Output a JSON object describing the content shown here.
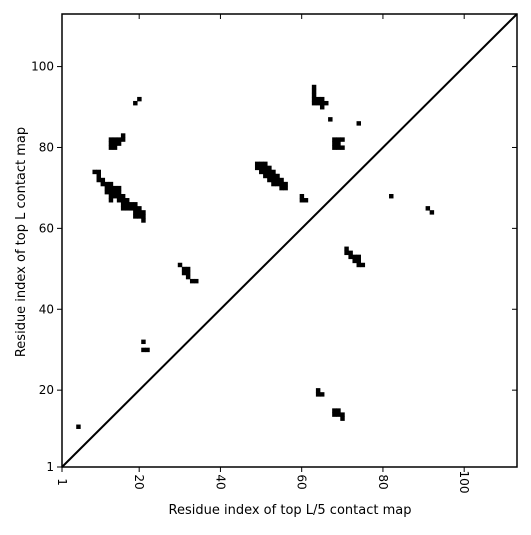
{
  "chart_data": {
    "type": "heatmap",
    "title": "",
    "xlabel": "Residue index of top L/5 contact map",
    "ylabel": "Residue index of top L contact map",
    "xlim": [
      1,
      113
    ],
    "ylim": [
      1,
      113
    ],
    "x_ticks": [
      {
        "value": 1,
        "label": "1"
      },
      {
        "value": 20,
        "label": "20"
      },
      {
        "value": 40,
        "label": "40"
      },
      {
        "value": 60,
        "label": "60"
      },
      {
        "value": 80,
        "label": "80"
      },
      {
        "value": 100,
        "label": "100"
      }
    ],
    "y_ticks": [
      {
        "value": 1,
        "label": "1"
      },
      {
        "value": 20,
        "label": "20"
      },
      {
        "value": 40,
        "label": "40"
      },
      {
        "value": 60,
        "label": "60"
      },
      {
        "value": 80,
        "label": "80"
      },
      {
        "value": 100,
        "label": "100"
      }
    ],
    "diagonal": {
      "from": [
        1,
        1
      ],
      "to": [
        113,
        113
      ],
      "color": "#000000"
    },
    "contact_color": "#000000",
    "contacts_upper": [
      [
        19,
        91
      ],
      [
        20,
        92
      ],
      [
        63,
        91
      ],
      [
        63,
        92
      ],
      [
        63,
        93
      ],
      [
        63,
        94
      ],
      [
        63,
        95
      ],
      [
        64,
        91
      ],
      [
        64,
        92
      ],
      [
        65,
        90
      ],
      [
        65,
        91
      ],
      [
        65,
        92
      ],
      [
        66,
        91
      ],
      [
        67,
        87
      ],
      [
        68,
        80
      ],
      [
        68,
        81
      ],
      [
        68,
        82
      ],
      [
        69,
        80
      ],
      [
        69,
        81
      ],
      [
        69,
        82
      ],
      [
        70,
        80
      ],
      [
        70,
        82
      ],
      [
        74,
        86
      ],
      [
        13,
        80
      ],
      [
        13,
        81
      ],
      [
        13,
        82
      ],
      [
        14,
        80
      ],
      [
        14,
        81
      ],
      [
        14,
        82
      ],
      [
        15,
        81
      ],
      [
        15,
        82
      ],
      [
        16,
        82
      ],
      [
        16,
        83
      ],
      [
        49,
        75
      ],
      [
        49,
        76
      ],
      [
        50,
        74
      ],
      [
        50,
        75
      ],
      [
        50,
        76
      ],
      [
        51,
        73
      ],
      [
        51,
        74
      ],
      [
        51,
        75
      ],
      [
        51,
        76
      ],
      [
        52,
        72
      ],
      [
        52,
        73
      ],
      [
        52,
        74
      ],
      [
        52,
        75
      ],
      [
        53,
        71
      ],
      [
        53,
        72
      ],
      [
        53,
        73
      ],
      [
        53,
        74
      ],
      [
        54,
        71
      ],
      [
        54,
        72
      ],
      [
        54,
        73
      ],
      [
        55,
        70
      ],
      [
        55,
        71
      ],
      [
        55,
        72
      ],
      [
        56,
        70
      ],
      [
        56,
        71
      ],
      [
        60,
        67
      ],
      [
        60,
        68
      ],
      [
        61,
        67
      ],
      [
        82,
        68
      ],
      [
        91,
        65
      ],
      [
        92,
        64
      ],
      [
        9,
        74
      ],
      [
        10,
        72
      ],
      [
        10,
        73
      ],
      [
        10,
        74
      ],
      [
        11,
        71
      ],
      [
        11,
        72
      ],
      [
        12,
        69
      ],
      [
        12,
        70
      ],
      [
        12,
        71
      ],
      [
        13,
        67
      ],
      [
        13,
        68
      ],
      [
        13,
        69
      ],
      [
        13,
        70
      ],
      [
        13,
        71
      ],
      [
        14,
        68
      ],
      [
        14,
        69
      ],
      [
        14,
        70
      ],
      [
        15,
        67
      ],
      [
        15,
        68
      ],
      [
        15,
        69
      ],
      [
        15,
        70
      ],
      [
        16,
        65
      ],
      [
        16,
        66
      ],
      [
        16,
        67
      ],
      [
        16,
        68
      ],
      [
        17,
        65
      ],
      [
        17,
        66
      ],
      [
        17,
        67
      ],
      [
        18,
        65
      ],
      [
        18,
        66
      ],
      [
        19,
        63
      ],
      [
        19,
        64
      ],
      [
        19,
        65
      ],
      [
        19,
        66
      ],
      [
        20,
        63
      ],
      [
        20,
        64
      ],
      [
        20,
        65
      ],
      [
        21,
        62
      ],
      [
        21,
        63
      ],
      [
        21,
        64
      ],
      [
        71,
        54
      ],
      [
        71,
        55
      ],
      [
        72,
        53
      ],
      [
        72,
        54
      ],
      [
        73,
        52
      ],
      [
        73,
        53
      ],
      [
        74,
        51
      ],
      [
        74,
        52
      ],
      [
        74,
        53
      ],
      [
        75,
        51
      ],
      [
        30,
        51
      ],
      [
        31,
        49
      ],
      [
        31,
        50
      ],
      [
        32,
        48
      ],
      [
        32,
        49
      ],
      [
        32,
        50
      ],
      [
        33,
        47
      ],
      [
        34,
        47
      ],
      [
        21,
        32
      ],
      [
        21,
        30
      ],
      [
        22,
        30
      ]
    ],
    "contacts_lower": [
      [
        5,
        11
      ],
      [
        64,
        19
      ],
      [
        64,
        20
      ],
      [
        65,
        19
      ],
      [
        69,
        14
      ],
      [
        69,
        15
      ],
      [
        70,
        13
      ],
      [
        70,
        14
      ],
      [
        68,
        14
      ],
      [
        68,
        15
      ]
    ]
  }
}
